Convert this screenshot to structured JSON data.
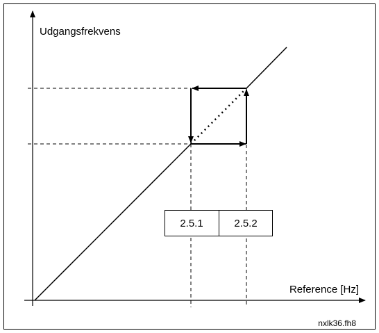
{
  "axes": {
    "y_label": "Udgangsfrekvens",
    "x_label": "Reference [Hz]"
  },
  "parameters": [
    "2.5.1",
    "2.5.2"
  ],
  "figure_id": "nxlk36.fh8"
}
